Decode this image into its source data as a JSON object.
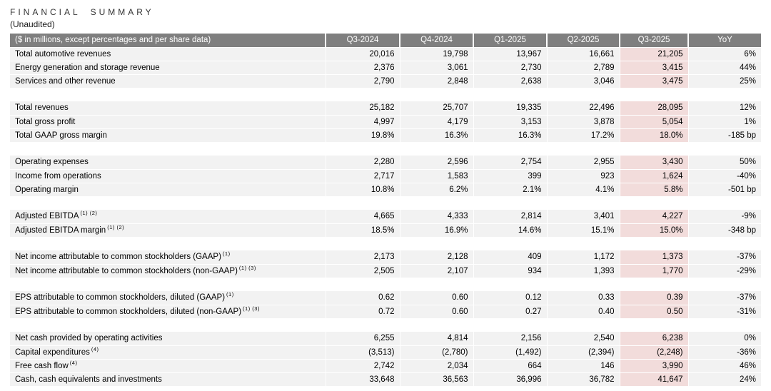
{
  "title": "FINANCIAL SUMMARY",
  "subtitle": "(Unaudited)",
  "table": {
    "corner_label": "($ in millions, except percentages and per share data)",
    "columns": [
      "Q3-2024",
      "Q4-2024",
      "Q1-2025",
      "Q2-2025",
      "Q3-2025",
      "YoY"
    ],
    "highlight_column": "Q3-2025",
    "groups": [
      {
        "rows": [
          {
            "label": "Total automotive revenues",
            "sup": "",
            "values": [
              "20,016",
              "19,798",
              "13,967",
              "16,661",
              "21,205",
              "6%"
            ]
          },
          {
            "label": "Energy generation and storage revenue",
            "sup": "",
            "values": [
              "2,376",
              "3,061",
              "2,730",
              "2,789",
              "3,415",
              "44%"
            ]
          },
          {
            "label": "Services and other revenue",
            "sup": "",
            "values": [
              "2,790",
              "2,848",
              "2,638",
              "3,046",
              "3,475",
              "25%"
            ]
          }
        ]
      },
      {
        "rows": [
          {
            "label": "Total revenues",
            "sup": "",
            "values": [
              "25,182",
              "25,707",
              "19,335",
              "22,496",
              "28,095",
              "12%"
            ]
          },
          {
            "label": "Total gross profit",
            "sup": "",
            "values": [
              "4,997",
              "4,179",
              "3,153",
              "3,878",
              "5,054",
              "1%"
            ]
          },
          {
            "label": "Total GAAP gross margin",
            "sup": "",
            "values": [
              "19.8%",
              "16.3%",
              "16.3%",
              "17.2%",
              "18.0%",
              "-185 bp"
            ]
          }
        ]
      },
      {
        "rows": [
          {
            "label": "Operating expenses",
            "sup": "",
            "values": [
              "2,280",
              "2,596",
              "2,754",
              "2,955",
              "3,430",
              "50%"
            ]
          },
          {
            "label": "Income from operations",
            "sup": "",
            "values": [
              "2,717",
              "1,583",
              "399",
              "923",
              "1,624",
              "-40%"
            ]
          },
          {
            "label": "Operating margin",
            "sup": "",
            "values": [
              "10.8%",
              "6.2%",
              "2.1%",
              "4.1%",
              "5.8%",
              "-501 bp"
            ]
          }
        ]
      },
      {
        "rows": [
          {
            "label": "Adjusted EBITDA",
            "sup": "(1) (2)",
            "values": [
              "4,665",
              "4,333",
              "2,814",
              "3,401",
              "4,227",
              "-9%"
            ]
          },
          {
            "label": "Adjusted EBITDA margin",
            "sup": "(1) (2)",
            "values": [
              "18.5%",
              "16.9%",
              "14.6%",
              "15.1%",
              "15.0%",
              "-348 bp"
            ]
          }
        ]
      },
      {
        "rows": [
          {
            "label": "Net income attributable to common stockholders (GAAP)",
            "sup": "(1)",
            "values": [
              "2,173",
              "2,128",
              "409",
              "1,172",
              "1,373",
              "-37%"
            ]
          },
          {
            "label": "Net income attributable to common stockholders (non-GAAP)",
            "sup": "(1) (3)",
            "values": [
              "2,505",
              "2,107",
              "934",
              "1,393",
              "1,770",
              "-29%"
            ]
          }
        ]
      },
      {
        "rows": [
          {
            "label": "EPS attributable to common stockholders, diluted (GAAP)",
            "sup": "(1)",
            "values": [
              "0.62",
              "0.60",
              "0.12",
              "0.33",
              "0.39",
              "-37%"
            ]
          },
          {
            "label": "EPS attributable to common stockholders, diluted (non-GAAP)",
            "sup": "(1) (3)",
            "values": [
              "0.72",
              "0.60",
              "0.27",
              "0.40",
              "0.50",
              "-31%"
            ]
          }
        ]
      },
      {
        "rows": [
          {
            "label": "Net cash provided by operating activities",
            "sup": "",
            "values": [
              "6,255",
              "4,814",
              "2,156",
              "2,540",
              "6,238",
              "0%"
            ]
          },
          {
            "label": "Capital expenditures",
            "sup": "(4)",
            "values": [
              "(3,513)",
              "(2,780)",
              "(1,492)",
              "(2,394)",
              "(2,248)",
              "-36%"
            ]
          },
          {
            "label": "Free cash flow",
            "sup": "(4)",
            "values": [
              "2,742",
              "2,034",
              "664",
              "146",
              "3,990",
              "46%"
            ]
          },
          {
            "label": "Cash, cash equivalents and investments",
            "sup": "",
            "values": [
              "33,648",
              "36,563",
              "36,996",
              "36,782",
              "41,647",
              "24%"
            ]
          }
        ]
      }
    ]
  },
  "colors": {
    "header_bg": "#7f7f7f",
    "header_text": "#ffffff",
    "row_bg": "#f2f2f2",
    "highlight_bg": "#f2dcdb",
    "text": "#000000"
  }
}
